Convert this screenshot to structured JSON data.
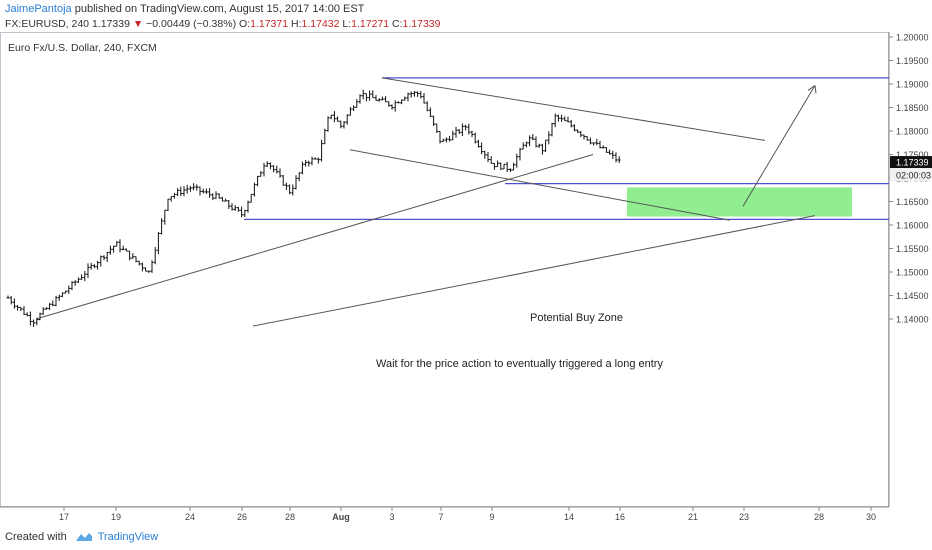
{
  "header": {
    "author": "JaimePantoja",
    "published_text": "published on TradingView.com, August 15, 2017 14:00 EST",
    "symbol": "FX:EURUSD, 240",
    "last": "1.17339",
    "change_arrow": "▼",
    "change": "−0.00449 (−0.38%)",
    "o_label": "O:",
    "o_value": "1.17371",
    "h_label": "H:",
    "h_value": "1.17432",
    "l_label": "L:",
    "l_value": "1.17271",
    "c_label": "C:",
    "c_value": "1.17339"
  },
  "chart_data": {
    "type": "candlestick",
    "title": "Euro Fx/U.S. Dollar, 240, FXCM",
    "ylim": [
      1.1375,
      1.2005
    ],
    "y_ticks": [
      "1.20000",
      "1.19500",
      "1.19000",
      "1.18500",
      "1.18000",
      "1.17500",
      "1.17000",
      "1.16500",
      "1.16000",
      "1.15500",
      "1.15000",
      "1.14500",
      "1.14000"
    ],
    "x_ticks": [
      "17",
      "19",
      "24",
      "26",
      "28",
      "Aug",
      "3",
      "7",
      "9",
      "14",
      "16",
      "21",
      "23",
      "28",
      "30"
    ],
    "price_tag": "1.17339",
    "countdown": "02:00:03",
    "anchor_prices": [
      {
        "label": "Jul 14",
        "price": 1.1445
      },
      {
        "label": "Jul 16",
        "price": 1.1395
      },
      {
        "label": "Jul 19",
        "price": 1.156
      },
      {
        "label": "Jul 20",
        "price": 1.153
      },
      {
        "label": "Jul 21",
        "price": 1.15
      },
      {
        "label": "Jul 22",
        "price": 1.166
      },
      {
        "label": "Jul 24",
        "price": 1.168
      },
      {
        "label": "Jul 25",
        "price": 1.166
      },
      {
        "label": "Jul 26",
        "price": 1.1622
      },
      {
        "label": "Jul 27",
        "price": 1.174
      },
      {
        "label": "Jul 28",
        "price": 1.167
      },
      {
        "label": "Jul 29",
        "price": 1.1735
      },
      {
        "label": "Jul 30",
        "price": 1.174
      },
      {
        "label": "Jul 31",
        "price": 1.184
      },
      {
        "label": "Aug 1",
        "price": 1.181
      },
      {
        "label": "Aug 2",
        "price": 1.188
      },
      {
        "label": "Aug 3",
        "price": 1.1855
      },
      {
        "label": "Aug 4",
        "price": 1.188
      },
      {
        "label": "Aug 5",
        "price": 1.188
      },
      {
        "label": "Aug 7",
        "price": 1.1775
      },
      {
        "label": "Aug 8",
        "price": 1.181
      },
      {
        "label": "Aug 9",
        "price": 1.173
      },
      {
        "label": "Aug 10",
        "price": 1.172
      },
      {
        "label": "Aug 11",
        "price": 1.1785
      },
      {
        "label": "Aug 12",
        "price": 1.176
      },
      {
        "label": "Aug 13",
        "price": 1.183
      },
      {
        "label": "Aug 14",
        "price": 1.1815
      },
      {
        "label": "Aug 15",
        "price": 1.178
      },
      {
        "label": "Aug 16",
        "price": 1.1734
      }
    ],
    "horizontal_levels": [
      1.1913,
      1.1688,
      1.1612
    ],
    "buy_zone": {
      "from": "Aug 17",
      "to": "Aug 29",
      "high": 1.168,
      "low": 1.1618,
      "label": "Potential Buy Zone"
    },
    "annotation": "Wait for the price action to eventually triggered a long entry"
  },
  "footer": {
    "created_with": "Created with",
    "brand": "TradingView"
  },
  "colors": {
    "level_line": "#5050d0",
    "trend_line": "#555555",
    "buy_zone": "#90ee90",
    "price_tag_bg": "#111111",
    "candles": "#111111"
  }
}
